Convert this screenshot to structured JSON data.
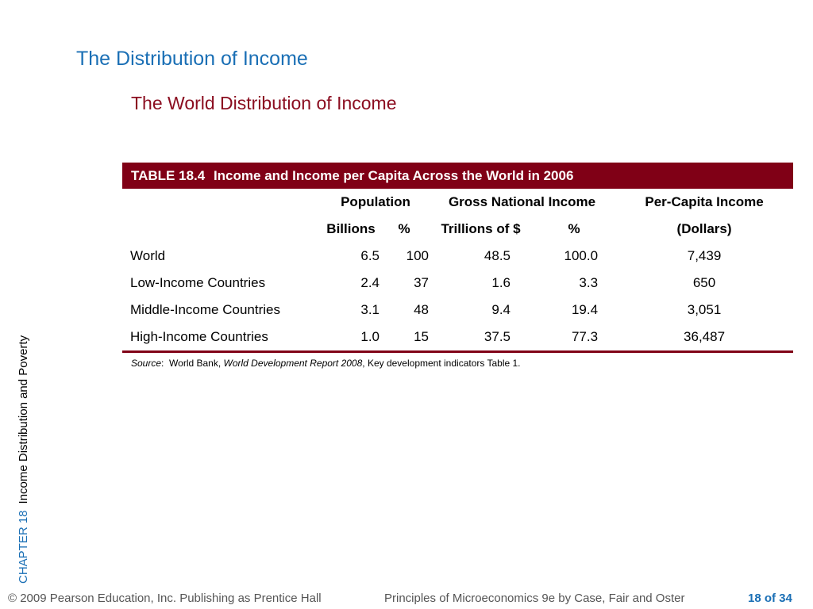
{
  "slide": {
    "title": "The Distribution of Income",
    "subtitle": "The World Distribution of Income"
  },
  "table": {
    "caption_label": "TABLE 18.4",
    "caption_text": "Income and Income per Capita Across the World in 2006",
    "group_headers": [
      "Population",
      "Gross National Income",
      "Per-Capita Income"
    ],
    "sub_headers": [
      "Billions",
      "%",
      "Trillions of $",
      "%",
      "(Dollars)"
    ],
    "rows": [
      [
        "World",
        "6.5",
        "100",
        "48.5",
        "100.0",
        "7,439"
      ],
      [
        "Low-Income Countries",
        "2.4",
        "37",
        "1.6",
        "3.3",
        "650"
      ],
      [
        "Middle-Income Countries",
        "3.1",
        "48",
        "9.4",
        "19.4",
        "3,051"
      ],
      [
        "High-Income Countries",
        "1.0",
        "15",
        "37.5",
        "77.3",
        "36,487"
      ]
    ]
  },
  "source": {
    "label": "Source",
    "colon": ":  World Bank, ",
    "publication": "World Development Report 2008",
    "rest": ", Key development indicators Table 1."
  },
  "sidebar": {
    "chapter": "CHAPTER 18",
    "title": "Income Distribution and Poverty"
  },
  "footer": {
    "copyright": "© 2009 Pearson Education, Inc. Publishing as Prentice Hall",
    "book": "Principles of Microeconomics 9e by Case, Fair and Oster",
    "page": "18 of 34"
  },
  "colors": {
    "title_blue": "#1a6fb5",
    "accent_maroon": "#800016"
  }
}
